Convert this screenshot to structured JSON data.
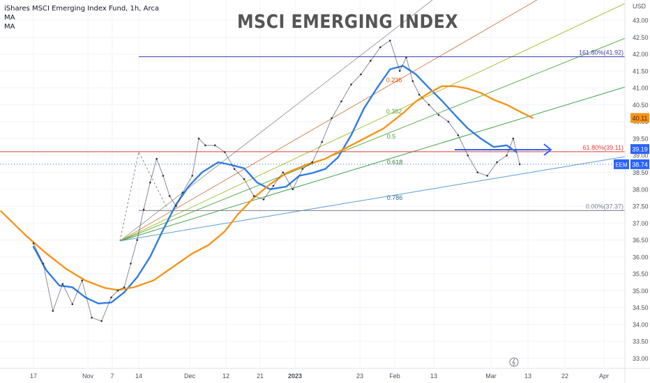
{
  "legend": {
    "line1": "iShares MSCI Emerging Index Fund, 1h, Arca",
    "line2": "MA",
    "line3": "MA"
  },
  "title_text": "MSCI EMERGING INDEX",
  "chart_data": {
    "type": "line",
    "title": "MSCI EMERGING INDEX",
    "currency": "USD",
    "symbol": "EEM",
    "ylim": [
      32.7,
      43.6
    ],
    "y_ticks": [
      "33.00",
      "33.50",
      "34.00",
      "34.50",
      "35.00",
      "35.50",
      "36.00",
      "36.50",
      "37.00",
      "37.50",
      "38.00",
      "38.50",
      "39.00",
      "39.50",
      "40.00",
      "40.50",
      "41.00",
      "41.50",
      "42.00",
      "42.50",
      "43.00"
    ],
    "x_ticks": [
      "17",
      "Nov",
      "7",
      "14",
      "Dec",
      "12",
      "21",
      "2023",
      "23",
      "Feb",
      "13",
      "Mar",
      "13",
      "22",
      "Apr"
    ],
    "last_price": "38.74",
    "ma_badges": [
      {
        "value": "40.11",
        "color": "#f7931a"
      },
      {
        "value": "39.19",
        "color": "#2962ff"
      }
    ],
    "fib_retracement": [
      {
        "label": "161.80%(41.92)",
        "value": 41.92,
        "color": "#3f3fa8"
      },
      {
        "label": "61.80%(39.11)",
        "value": 39.11,
        "color": "#e53935"
      },
      {
        "label": "0.00%(37.37)",
        "value": 37.37,
        "color": "#787b86"
      }
    ],
    "fan_labels": [
      {
        "label": "0.236",
        "color": "#e65100"
      },
      {
        "label": "0.382",
        "color": "#689f38"
      },
      {
        "label": "0.5",
        "color": "#43a047"
      },
      {
        "label": "0.618",
        "color": "#2e7d32"
      },
      {
        "label": "0.786",
        "color": "#1e6fa0"
      }
    ],
    "series": [
      {
        "type": "ma",
        "color": "#2f7de1",
        "x": [
          "2022-10-10",
          "2022-10-14",
          "2022-10-18",
          "2022-10-22",
          "2022-10-26",
          "2022-10-30",
          "2022-11-03",
          "2022-11-07",
          "2022-11-11",
          "2022-11-15",
          "2022-11-19",
          "2022-11-23",
          "2022-11-27",
          "2022-12-01",
          "2022-12-06",
          "2022-12-10",
          "2022-12-14",
          "2022-12-18",
          "2022-12-22",
          "2022-12-27",
          "2022-12-31",
          "2023-01-04",
          "2023-01-08",
          "2023-01-12",
          "2023-01-16",
          "2023-01-20",
          "2023-01-24",
          "2023-01-28",
          "2023-02-01",
          "2023-02-05",
          "2023-02-09",
          "2023-02-13",
          "2023-02-17",
          "2023-02-21",
          "2023-02-25",
          "2023-03-01",
          "2023-03-05",
          "2023-03-08"
        ],
        "values": [
          36.3,
          35.6,
          35.15,
          35.1,
          34.8,
          34.62,
          34.65,
          34.95,
          35.4,
          36.0,
          36.8,
          37.55,
          38.1,
          38.5,
          38.8,
          38.72,
          38.62,
          38.2,
          38.0,
          38.08,
          38.4,
          38.48,
          38.6,
          38.95,
          39.6,
          40.4,
          41.0,
          41.55,
          41.65,
          41.4,
          41.0,
          40.62,
          40.2,
          39.8,
          39.5,
          39.25,
          39.3,
          39.1
        ]
      },
      {
        "type": "ma",
        "color": "#f7931a",
        "x": [
          "2022-09-30",
          "2022-10-08",
          "2022-10-14",
          "2022-10-20",
          "2022-10-26",
          "2022-11-01",
          "2022-11-05",
          "2022-11-10",
          "2022-11-16",
          "2022-11-22",
          "2022-11-28",
          "2022-12-03",
          "2022-12-08",
          "2022-12-12",
          "2022-12-17",
          "2022-12-22",
          "2022-12-27",
          "2023-01-02",
          "2023-01-08",
          "2023-01-14",
          "2023-01-20",
          "2023-01-26",
          "2023-02-01",
          "2023-02-05",
          "2023-02-09",
          "2023-02-13",
          "2023-02-17",
          "2023-02-21",
          "2023-02-25",
          "2023-03-01",
          "2023-03-05",
          "2023-03-09",
          "2023-03-13"
        ],
        "values": [
          37.35,
          36.6,
          36.1,
          35.65,
          35.3,
          35.08,
          35.02,
          35.1,
          35.3,
          35.7,
          36.1,
          36.35,
          36.75,
          37.25,
          37.75,
          38.15,
          38.48,
          38.72,
          38.9,
          39.2,
          39.5,
          39.8,
          40.25,
          40.6,
          40.85,
          41.05,
          41.05,
          40.98,
          40.85,
          40.65,
          40.5,
          40.3,
          40.11
        ]
      },
      {
        "type": "price",
        "color": "#2a2e39",
        "x": [
          "2022-10-10",
          "2022-10-13",
          "2022-10-16",
          "2022-10-19",
          "2022-10-22",
          "2022-10-25",
          "2022-10-28",
          "2022-10-31",
          "2022-11-03",
          "2022-11-05",
          "2022-11-07",
          "2022-11-09",
          "2022-11-11",
          "2022-11-13",
          "2022-11-15",
          "2022-11-17",
          "2022-11-19",
          "2022-11-21",
          "2022-11-23",
          "2022-11-25",
          "2022-11-28",
          "2022-11-30",
          "2022-12-02",
          "2022-12-05",
          "2022-12-08",
          "2022-12-11",
          "2022-12-14",
          "2022-12-17",
          "2022-12-20",
          "2022-12-23",
          "2022-12-26",
          "2022-12-29",
          "2023-01-01",
          "2023-01-04",
          "2023-01-07",
          "2023-01-10",
          "2023-01-13",
          "2023-01-16",
          "2023-01-19",
          "2023-01-22",
          "2023-01-25",
          "2023-01-28",
          "2023-01-31",
          "2023-02-02",
          "2023-02-04",
          "2023-02-06",
          "2023-02-09",
          "2023-02-12",
          "2023-02-15",
          "2023-02-18",
          "2023-02-21",
          "2023-02-24",
          "2023-02-27",
          "2023-03-02",
          "2023-03-05",
          "2023-03-07",
          "2023-03-09"
        ],
        "values": [
          36.4,
          35.8,
          34.4,
          35.2,
          34.6,
          35.3,
          34.2,
          34.1,
          34.8,
          35.0,
          35.1,
          35.8,
          36.5,
          37.4,
          38.2,
          38.9,
          38.4,
          37.8,
          37.5,
          37.9,
          38.4,
          39.5,
          39.3,
          39.3,
          39.1,
          38.6,
          38.3,
          37.8,
          37.7,
          38.1,
          38.5,
          38.0,
          38.6,
          38.8,
          39.4,
          40.1,
          40.6,
          41.1,
          41.4,
          41.8,
          42.2,
          42.4,
          41.5,
          41.9,
          41.2,
          40.8,
          40.5,
          40.2,
          40.0,
          39.6,
          39.0,
          38.5,
          38.4,
          38.8,
          39.0,
          39.5,
          38.74
        ]
      }
    ]
  }
}
